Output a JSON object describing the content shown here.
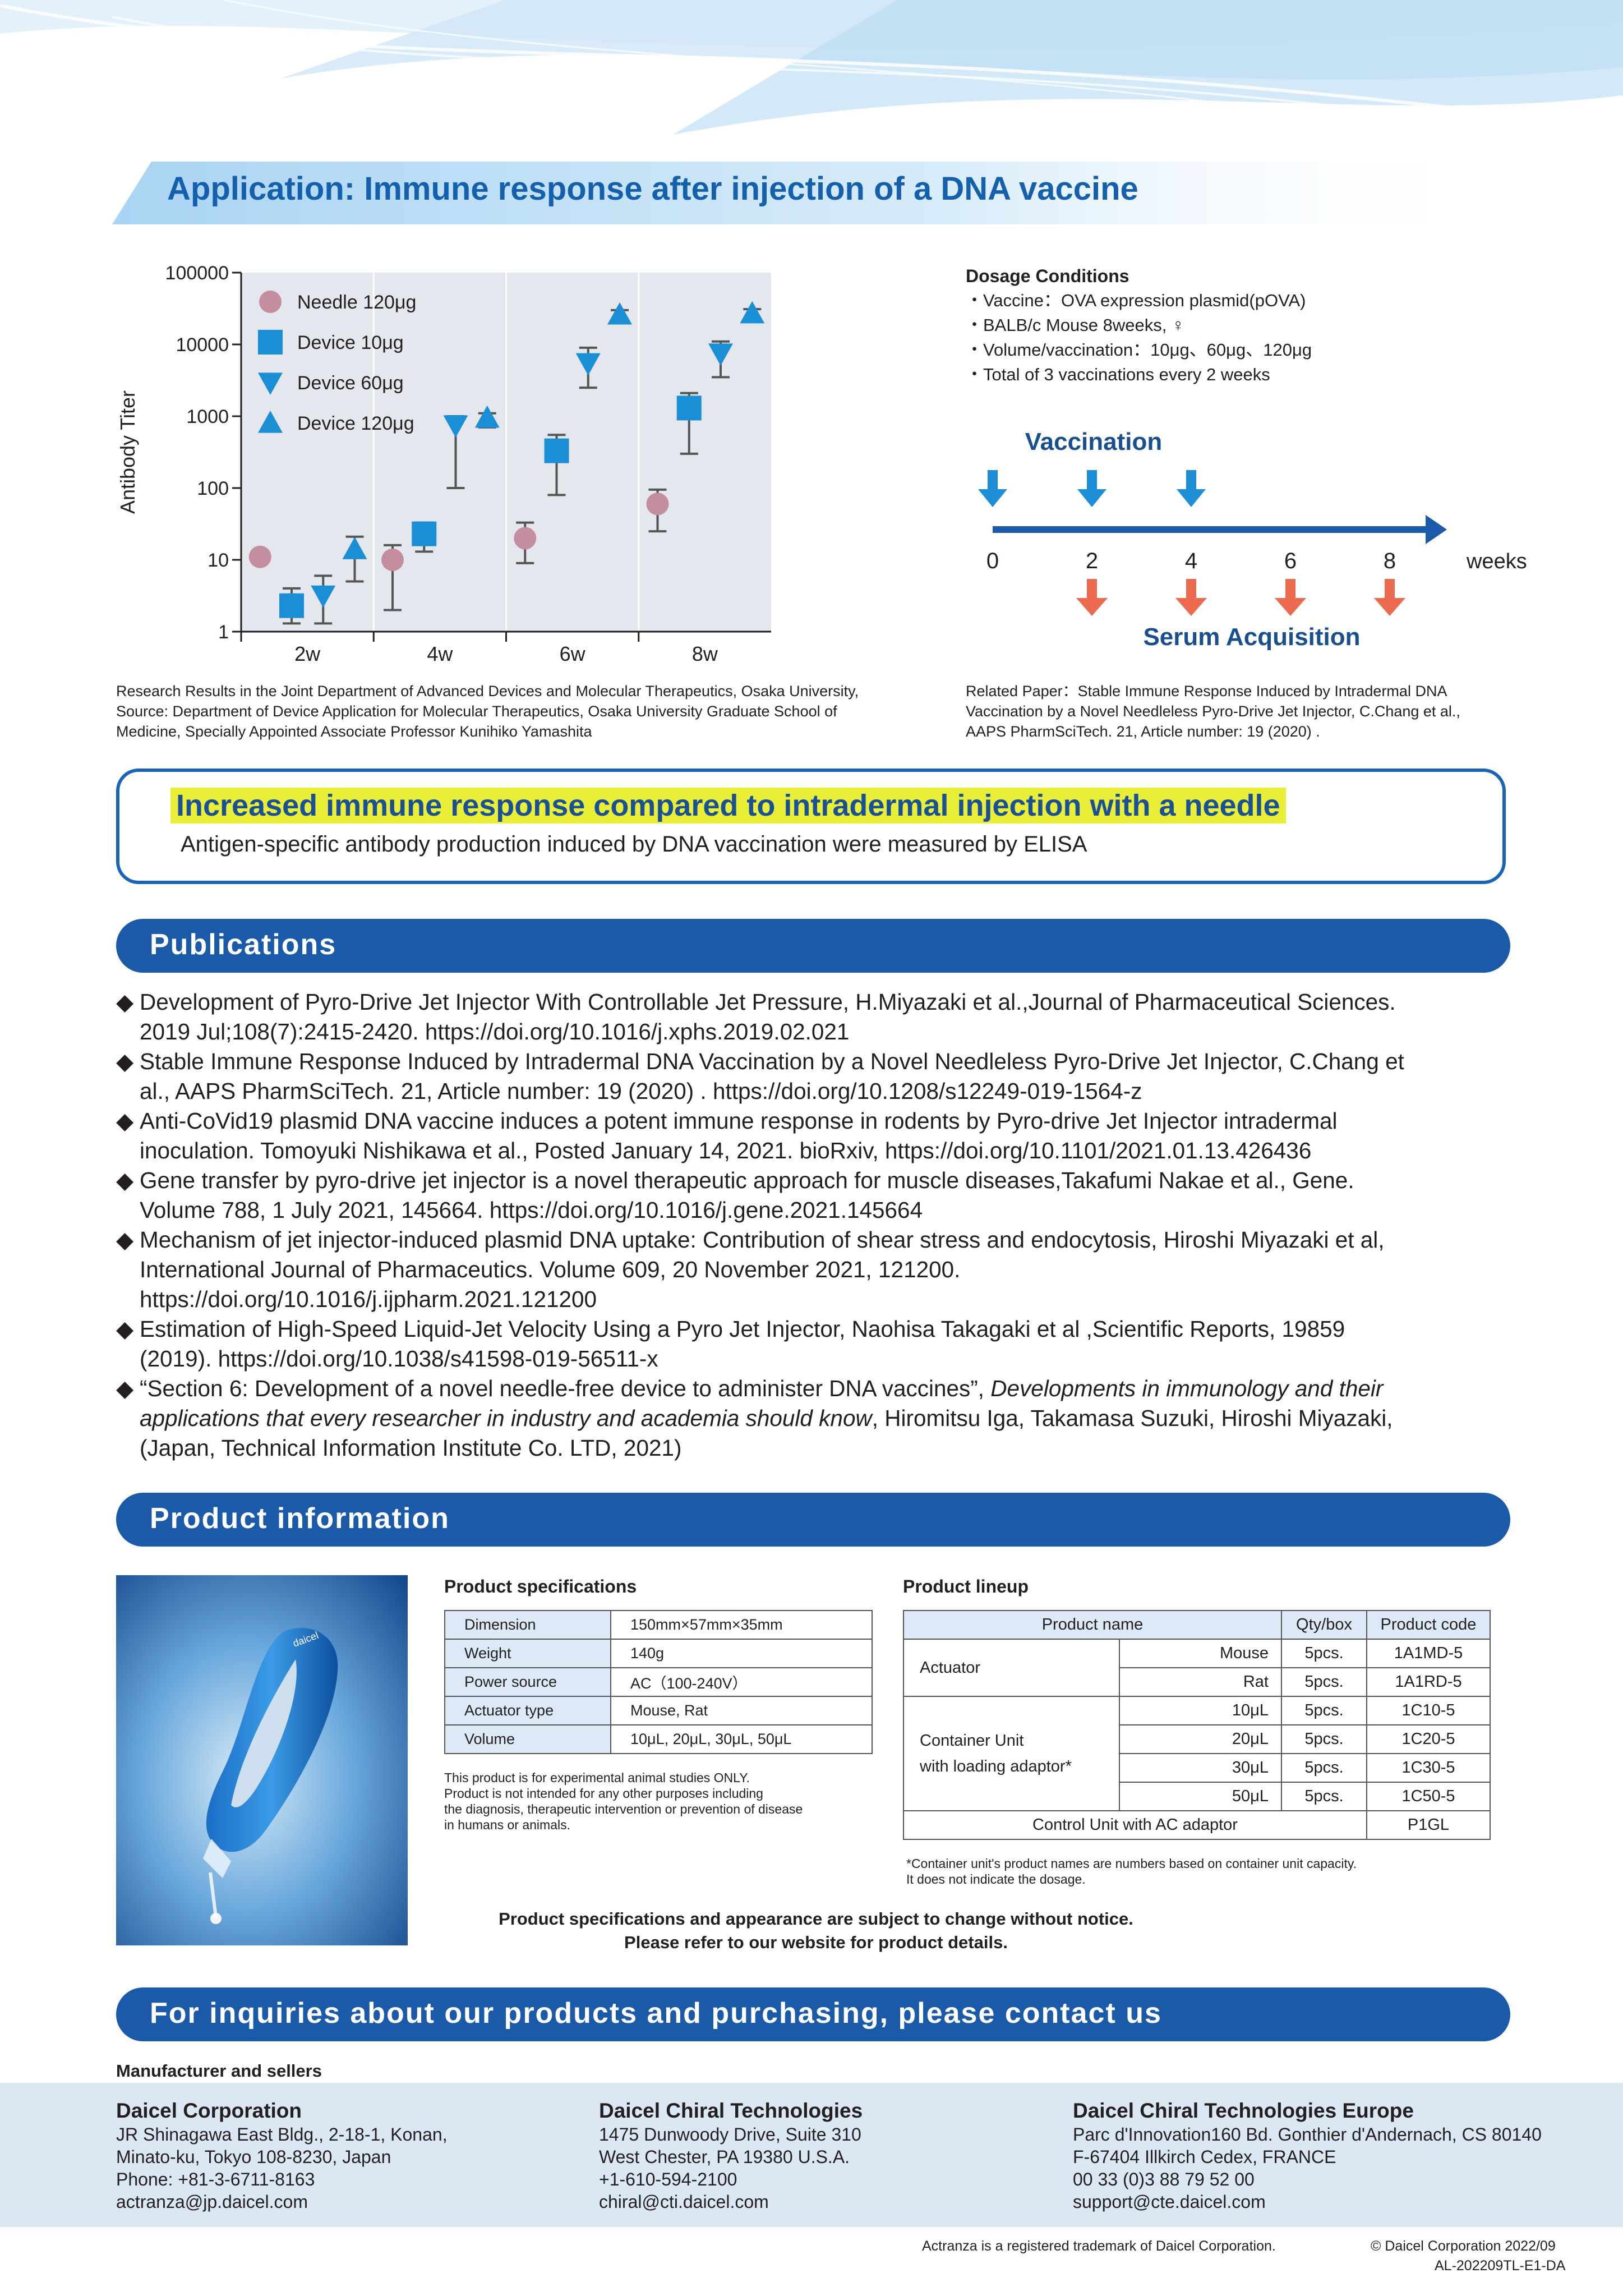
{
  "header": {
    "title": "Application: Immune response after injection of a DNA vaccine"
  },
  "chart_data": {
    "type": "scatter",
    "title": "",
    "ylabel": "Antibody Titer",
    "xlabel": "",
    "y_scale": "log",
    "ylim": [
      1,
      100000
    ],
    "y_ticks": [
      "100000",
      "10000",
      "1000",
      "100",
      "10",
      "1"
    ],
    "categories": [
      "2w",
      "4w",
      "6w",
      "8w"
    ],
    "grid": true,
    "legend_position": "top-left",
    "series": [
      {
        "name": "Needle 120μg",
        "marker": "circle",
        "color": "#c58e9f",
        "values": [
          11,
          10,
          20,
          60
        ],
        "err_low": [
          11,
          2,
          9,
          25
        ],
        "err_high": [
          11,
          16,
          33,
          95
        ]
      },
      {
        "name": "Device  10μg",
        "marker": "square",
        "color": "#1b8fd6",
        "values": [
          2.3,
          23,
          330,
          1300
        ],
        "err_low": [
          1.3,
          13,
          80,
          300
        ],
        "err_high": [
          4,
          33,
          550,
          2100
        ]
      },
      {
        "name": "Device  60μg",
        "marker": "triangle-down",
        "color": "#1b8fd6",
        "values": [
          3.2,
          750,
          5500,
          7500
        ],
        "err_low": [
          1.3,
          100,
          2500,
          3500
        ],
        "err_high": [
          6,
          1000,
          9000,
          11000
        ]
      },
      {
        "name": "Device 120μg",
        "marker": "triangle-up",
        "color": "#1b8fd6",
        "values": [
          14,
          950,
          26000,
          27000
        ],
        "err_low": [
          5,
          700,
          20000,
          22000
        ],
        "err_high": [
          21,
          1100,
          30000,
          31000
        ]
      }
    ]
  },
  "chart_source": [
    "Research Results in the Joint Department of Advanced Devices and Molecular Therapeutics, Osaka University,",
    "Source: Department of Device Application for Molecular Therapeutics, Osaka University Graduate School of",
    "Medicine, Specially Appointed Associate Professor Kunihiko Yamashita"
  ],
  "dosage": {
    "title": "Dosage Conditions",
    "lines": [
      "・Vaccine：OVA expression plasmid(pOVA)",
      "・BALB/c Mouse 8weeks, ♀",
      "・Volume/vaccination：10μg、60μg、120μg",
      "・Total of 3 vaccinations every 2 weeks"
    ]
  },
  "timeline": {
    "vaccination_label": "Vaccination",
    "serum_label": "Serum Acquisition",
    "ticks": [
      "0",
      "2",
      "4",
      "6",
      "8"
    ],
    "unit": "weeks",
    "vaccination_weeks": [
      0,
      2,
      4
    ],
    "serum_weeks": [
      2,
      4,
      6,
      8
    ],
    "vaccination_color": "#1e8fd6",
    "serum_color": "#ec6a4f",
    "axis_color": "#1a5aa8"
  },
  "related_paper": [
    "Related Paper：Stable Immune Response Induced by Intradermal DNA",
    "Vaccination by a Novel Needleless Pyro-Drive Jet Injector, C.Chang et al.,",
    "AAPS PharmSciTech. 21, Article number: 19 (2020) ."
  ],
  "highlight": {
    "title": "Increased immune response compared to intradermal injection with a needle",
    "subtitle": "Antigen-specific antibody production induced by DNA vaccination were measured by ELISA"
  },
  "publications": {
    "heading": "Publications",
    "bullet": "◆",
    "items": [
      {
        "lines": [
          "Development of Pyro-Drive Jet Injector With Controllable Jet Pressure, H.Miyazaki et al.,Journal of Pharmaceutical Sciences.",
          "2019 Jul;108(7):2415-2420. https://doi.org/10.1016/j.xphs.2019.02.021"
        ]
      },
      {
        "lines": [
          "Stable Immune Response Induced by Intradermal DNA Vaccination by a Novel Needleless Pyro-Drive Jet Injector, C.Chang et",
          "al., AAPS PharmSciTech. 21, Article number: 19 (2020) . https://doi.org/10.1208/s12249-019-1564-z"
        ]
      },
      {
        "lines": [
          "Anti-CoVid19 plasmid DNA vaccine induces a potent immune response in rodents by Pyro-drive Jet Injector intradermal",
          "inoculation. Tomoyuki Nishikawa et al., Posted January 14, 2021. bioRxiv,  https://doi.org/10.1101/2021.01.13.426436"
        ]
      },
      {
        "lines": [
          "Gene transfer by pyro-drive jet injector is a novel therapeutic approach for muscle diseases,Takafumi Nakae et al., Gene.",
          "Volume 788, 1 July 2021, 145664. https://doi.org/10.1016/j.gene.2021.145664"
        ]
      },
      {
        "lines": [
          "Mechanism of jet injector-induced plasmid DNA uptake: Contribution of shear stress and endocytosis, Hiroshi Miyazaki et al,",
          "International Journal of Pharmaceutics. Volume 609, 20 November 2021, 121200.",
          "https://doi.org/10.1016/j.ijpharm.2021.121200"
        ]
      },
      {
        "lines": [
          "Estimation of High-Speed Liquid-Jet Velocity Using a Pyro Jet Injector, Naohisa Takagaki et al ,Scientific Reports, 19859",
          "(2019).  https://doi.org/10.1038/s41598-019-56511-x"
        ]
      }
    ],
    "last": {
      "part1": "“Section 6: Development of a novel needle-free device to administer DNA vaccines”, ",
      "part2": "Developments in immunology and their",
      "part3": "applications that every researcher in industry and academia should know",
      "part4": ", Hiromitsu Iga, Takamasa Suzuki, Hiroshi Miyazaki,",
      "line3": "(Japan, Technical Information Institute Co. LTD, 2021)"
    }
  },
  "product": {
    "heading": "Product information",
    "image_label": "daicel",
    "spec_title": "Product specifications",
    "specs": [
      {
        "k": "Dimension",
        "v": "150mm×57mm×35mm"
      },
      {
        "k": "Weight",
        "v": "140g"
      },
      {
        "k": "Power source",
        "v": "AC（100-240V）"
      },
      {
        "k": "Actuator type",
        "v": "Mouse, Rat"
      },
      {
        "k": "Volume",
        "v": "10μL, 20μL, 30μL, 50μL"
      }
    ],
    "spec_note": [
      "This product is for experimental animal studies ONLY.",
      "Product is not intended for any other purposes including",
      "the diagnosis, therapeutic intervention or prevention of disease",
      "in humans or animals."
    ],
    "lineup_title": "Product lineup",
    "lineup_headers": [
      "Product name",
      "Qty/box",
      "Product code"
    ],
    "actuator_label": "Actuator",
    "actuator_rows": [
      {
        "sub": "Mouse",
        "qty": "5pcs.",
        "code": "1A1MD-5"
      },
      {
        "sub": "Rat",
        "qty": "5pcs.",
        "code": "1A1RD-5"
      }
    ],
    "container_label_1": "Container Unit",
    "container_label_2": "with loading adaptor*",
    "container_rows": [
      {
        "sub": "10μL",
        "qty": "5pcs.",
        "code": "1C10-5"
      },
      {
        "sub": "20μL",
        "qty": "5pcs.",
        "code": "1C20-5"
      },
      {
        "sub": "30μL",
        "qty": "5pcs.",
        "code": "1C30-5"
      },
      {
        "sub": "50μL",
        "qty": "5pcs.",
        "code": "1C50-5"
      }
    ],
    "control_label": "Control Unit with AC adaptor",
    "control_code": "P1GL",
    "lineup_note": [
      "*Container unit's product names are numbers based on container unit capacity.",
      "It does not indicate the dosage."
    ],
    "notice": [
      "Product specifications and appearance are subject to change without notice.",
      "Please refer to our website for product details."
    ]
  },
  "contact": {
    "heading": "For inquiries about our products and purchasing, please contact us",
    "manufacturer_label": "Manufacturer and sellers",
    "companies": [
      {
        "name": "Daicel Corporation",
        "lines": [
          "JR Shinagawa East Bldg., 2-18-1, Konan,",
          "Minato-ku, Tokyo 108-8230, Japan",
          "Phone: +81-3-6711-8163",
          "actranza@jp.daicel.com"
        ]
      },
      {
        "name": "Daicel Chiral Technologies",
        "lines": [
          "1475 Dunwoody Drive, Suite 310",
          "West Chester, PA 19380 U.S.A.",
          "+1-610-594-2100",
          "chiral@cti.daicel.com"
        ]
      },
      {
        "name": "Daicel Chiral Technologies Europe",
        "lines": [
          "Parc d'Innovation160 Bd. Gonthier d'Andernach, CS 80140",
          "F-67404 Illkirch Cedex, FRANCE",
          "00 33 (0)3 88 79 52 00",
          "support@cte.daicel.com"
        ]
      }
    ]
  },
  "footer": {
    "trademark": "Actranza is a registered trademark of Daicel Corporation.",
    "copyright": "© Daicel Corporation 2022/09",
    "doc_id": "AL-202209TL-E1-DA"
  },
  "colors": {
    "brand_blue": "#1a5aa8",
    "title_blue": "#1560ad",
    "highlight_yellow": "#e9ee36"
  }
}
